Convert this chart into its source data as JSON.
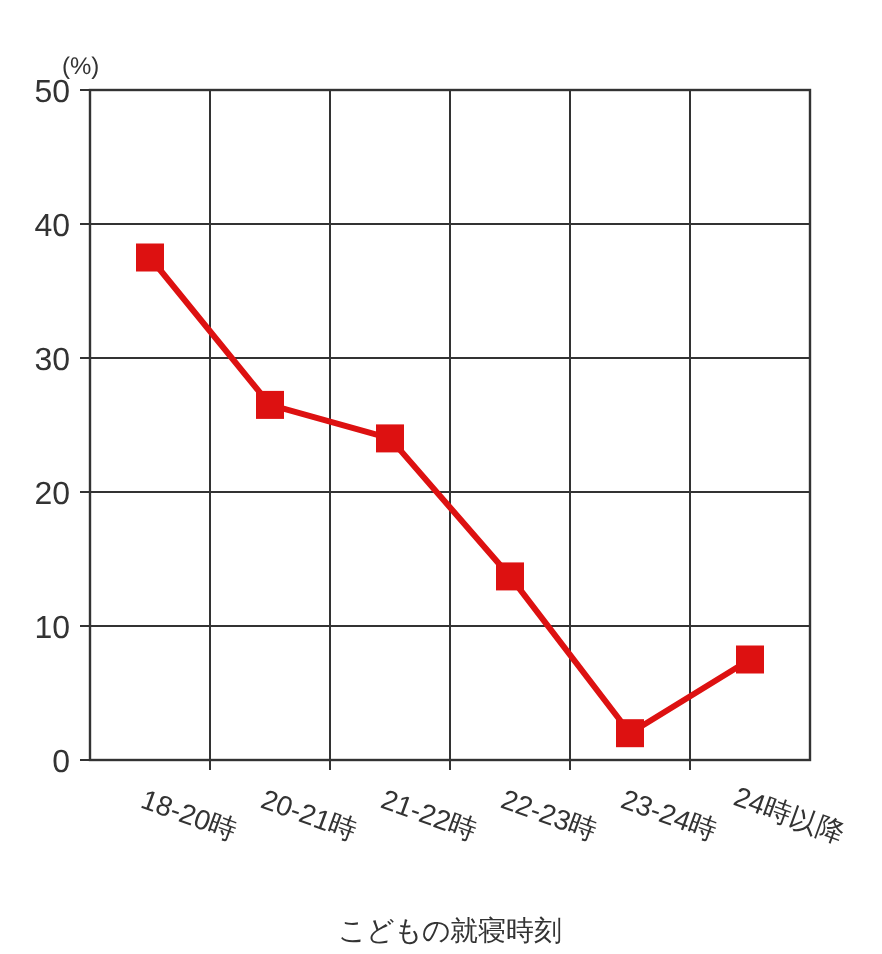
{
  "chart_data": {
    "type": "line",
    "xlabel": "こどもの就寝時刻",
    "ylabel": "(%)",
    "categories": [
      "18-20時",
      "20-21時",
      "21-22時",
      "22-23時",
      "23-24時",
      "24時以降"
    ],
    "series": [
      {
        "color": "#dd1111",
        "values": [
          37.5,
          26.5,
          24,
          13.7,
          2,
          7.5
        ]
      }
    ],
    "ylim": [
      0,
      50
    ],
    "yticks": [
      0,
      10,
      20,
      30,
      40,
      50
    ],
    "grid": true,
    "marker": "square",
    "line_style": "solid"
  }
}
